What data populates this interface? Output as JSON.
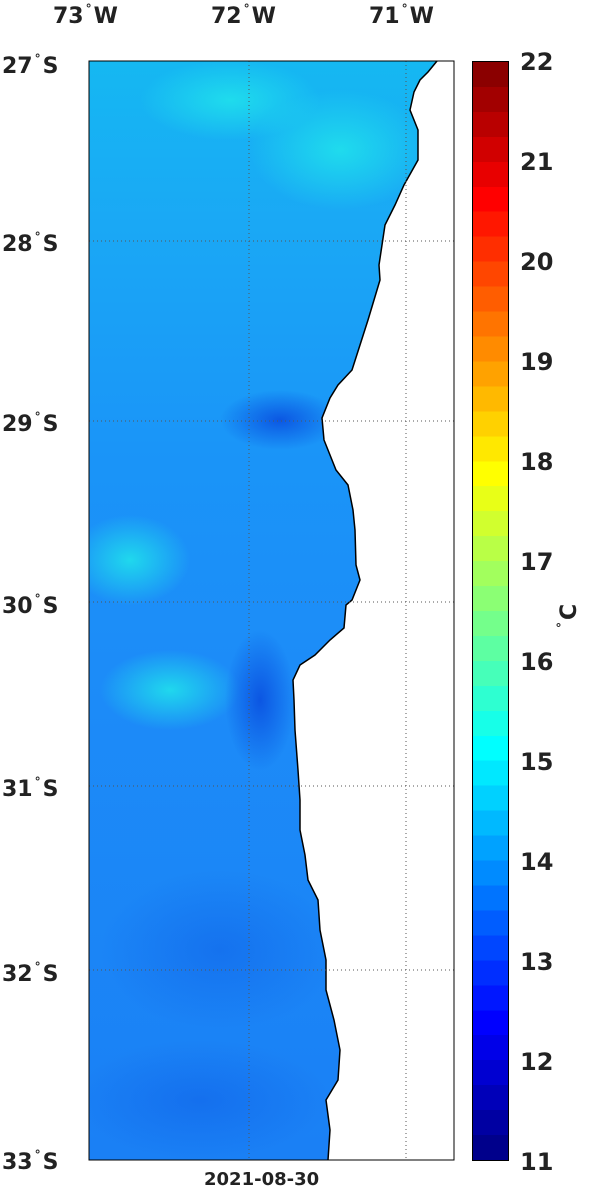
{
  "map": {
    "lon_labels": [
      {
        "deg": "73",
        "hemi": "W"
      },
      {
        "deg": "72",
        "hemi": "W"
      },
      {
        "deg": "71",
        "hemi": "W"
      }
    ],
    "lat_labels": [
      {
        "deg": "27",
        "hemi": "S"
      },
      {
        "deg": "28",
        "hemi": "S"
      },
      {
        "deg": "29",
        "hemi": "S"
      },
      {
        "deg": "30",
        "hemi": "S"
      },
      {
        "deg": "31",
        "hemi": "S"
      },
      {
        "deg": "32",
        "hemi": "S"
      },
      {
        "deg": "33",
        "hemi": "S"
      }
    ],
    "degree_symbol": "°",
    "date": "2021-08-30"
  },
  "colorbar": {
    "min": 11,
    "max": 22,
    "ticks": [
      "22",
      "21",
      "20",
      "19",
      "18",
      "17",
      "16",
      "15",
      "14",
      "13",
      "12",
      "11"
    ],
    "unit_deg": "°",
    "unit": "C",
    "colormap": "jet"
  },
  "colors": {
    "ocean_base": "#1a8cff",
    "ocean_warm": "#17c8f0",
    "ocean_cool": "#1060e8",
    "land": "#ffffff"
  }
}
